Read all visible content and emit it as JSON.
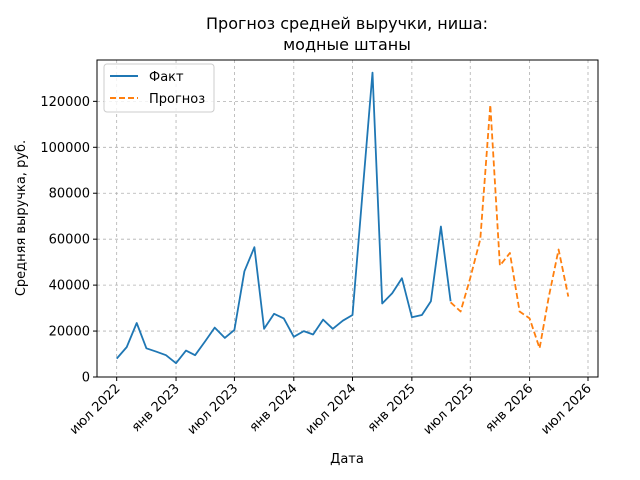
{
  "chart_data": {
    "type": "line",
    "title_lines": [
      "Прогноз средней выручки, ниша:",
      "модные штаны"
    ],
    "xlabel": "Дата",
    "ylabel": "Средняя выручка, руб.",
    "grid": true,
    "legend_position": "top-left",
    "x_range": [
      "2022-05-01",
      "2026-08-01"
    ],
    "ylim": [
      0,
      138000
    ],
    "x_ticks": [
      {
        "date": "2022-07-01",
        "label": "июл 2022"
      },
      {
        "date": "2023-01-01",
        "label": "янв 2023"
      },
      {
        "date": "2023-07-01",
        "label": "июл 2023"
      },
      {
        "date": "2024-01-01",
        "label": "янв 2024"
      },
      {
        "date": "2024-07-01",
        "label": "июл 2024"
      },
      {
        "date": "2025-01-01",
        "label": "янв 2025"
      },
      {
        "date": "2025-07-01",
        "label": "июл 2025"
      },
      {
        "date": "2026-01-01",
        "label": "янв 2026"
      },
      {
        "date": "2026-07-01",
        "label": "июл 2026"
      }
    ],
    "y_ticks": [
      0,
      20000,
      40000,
      60000,
      80000,
      100000,
      120000
    ],
    "series": [
      {
        "name": "Факт",
        "color": "#1f77b4",
        "dash": "solid",
        "points": [
          [
            "2022-07-01",
            8000
          ],
          [
            "2022-08-01",
            13000
          ],
          [
            "2022-09-01",
            23500
          ],
          [
            "2022-10-01",
            12500
          ],
          [
            "2022-11-01",
            11000
          ],
          [
            "2022-12-01",
            9500
          ],
          [
            "2023-01-01",
            6000
          ],
          [
            "2023-02-01",
            11500
          ],
          [
            "2023-03-01",
            9500
          ],
          [
            "2023-04-01",
            15500
          ],
          [
            "2023-05-01",
            21500
          ],
          [
            "2023-06-01",
            17000
          ],
          [
            "2023-07-01",
            20500
          ],
          [
            "2023-08-01",
            46000
          ],
          [
            "2023-09-01",
            56500
          ],
          [
            "2023-10-01",
            21000
          ],
          [
            "2023-11-01",
            27500
          ],
          [
            "2023-12-01",
            25500
          ],
          [
            "2024-01-01",
            17500
          ],
          [
            "2024-02-01",
            20000
          ],
          [
            "2024-03-01",
            18500
          ],
          [
            "2024-04-01",
            25000
          ],
          [
            "2024-05-01",
            21000
          ],
          [
            "2024-06-01",
            24500
          ],
          [
            "2024-07-01",
            27000
          ],
          [
            "2024-08-01",
            80000
          ],
          [
            "2024-09-01",
            132500
          ],
          [
            "2024-10-01",
            32000
          ],
          [
            "2024-11-01",
            36500
          ],
          [
            "2024-12-01",
            43000
          ],
          [
            "2025-01-01",
            26000
          ],
          [
            "2025-02-01",
            27000
          ],
          [
            "2025-03-01",
            33000
          ],
          [
            "2025-04-01",
            65500
          ],
          [
            "2025-05-01",
            33000
          ]
        ]
      },
      {
        "name": "Прогноз",
        "color": "#ff7f0e",
        "dash": "dashed",
        "points": [
          [
            "2025-05-01",
            32500
          ],
          [
            "2025-06-01",
            28500
          ],
          [
            "2025-07-01",
            43000
          ],
          [
            "2025-08-01",
            60000
          ],
          [
            "2025-09-01",
            118500
          ],
          [
            "2025-10-01",
            48500
          ],
          [
            "2025-11-01",
            54000
          ],
          [
            "2025-12-01",
            28500
          ],
          [
            "2026-01-01",
            25500
          ],
          [
            "2026-02-01",
            12500
          ],
          [
            "2026-03-01",
            34500
          ],
          [
            "2026-04-01",
            55500
          ],
          [
            "2026-05-01",
            35000
          ]
        ]
      }
    ]
  }
}
